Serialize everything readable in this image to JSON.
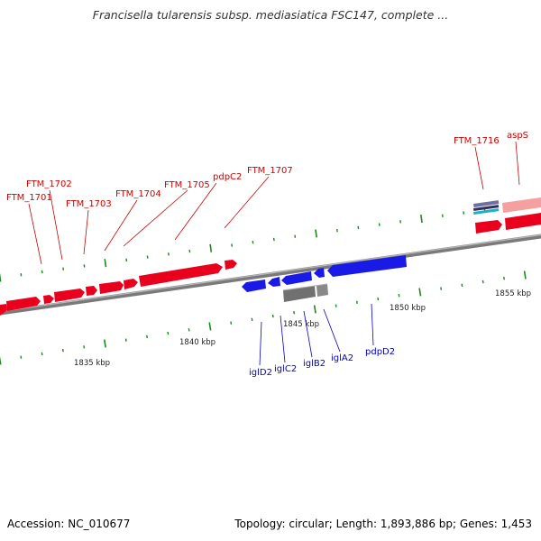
{
  "title": "Francisella tularensis subsp. mediasiatica FSC147, complete ...",
  "footer": {
    "accession": "Accession: NC_010677",
    "summary": "Topology: circular; Length: 1,893,886 bp; Genes: 1,453"
  },
  "colors": {
    "forward_gene": "#e8001c",
    "reverse_gene": "#1a1ae6",
    "pseudo_gene": "#777777",
    "rna_light": "#f08080",
    "tick": "#1a8a1a",
    "axis": "#888888",
    "forward_label": "#cc0000",
    "reverse_label": "#0000cc"
  },
  "ruler": {
    "tick_labels": [
      "1835 kbp",
      "1840 kbp",
      "1845 kbp",
      "1850 kbp",
      "1855 kbp"
    ]
  },
  "forward_gene_labels": [
    "FTM_1701",
    "FTM_1702",
    "FTM_1703",
    "FTM_1704",
    "FTM_1705",
    "pdpC2",
    "FTM_1707",
    "FTM_1716",
    "aspS"
  ],
  "reverse_gene_labels": [
    "iglD2",
    "iglC2",
    "iglB2",
    "iglA2",
    "pdpD2"
  ]
}
